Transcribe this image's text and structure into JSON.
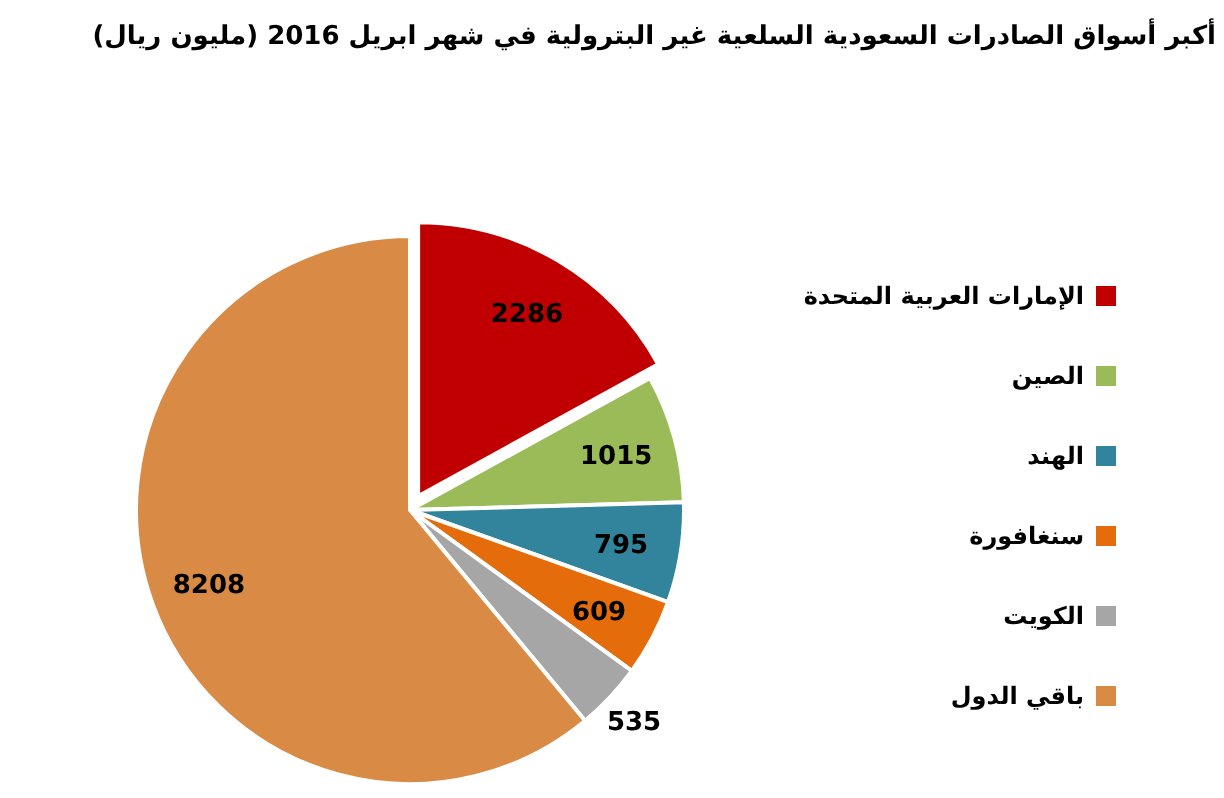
{
  "chart_data": {
    "type": "pie",
    "title": "أكبر أسواق الصادرات السعودية السلعية غير البترولية في شهر ابريل 2016 (مليون ريال)",
    "categories": [
      "الإمارات العربية المتحدة",
      "الصين",
      "الهند",
      "سنغافورة",
      "الكويت",
      "باقي الدول"
    ],
    "values": [
      2286,
      1015,
      795,
      609,
      535,
      8208
    ],
    "colors": [
      "#c00000",
      "#9bbb59",
      "#31849b",
      "#e46c0a",
      "#a6a6a6",
      "#d98a45"
    ],
    "data_labels": true,
    "legend": "right"
  }
}
